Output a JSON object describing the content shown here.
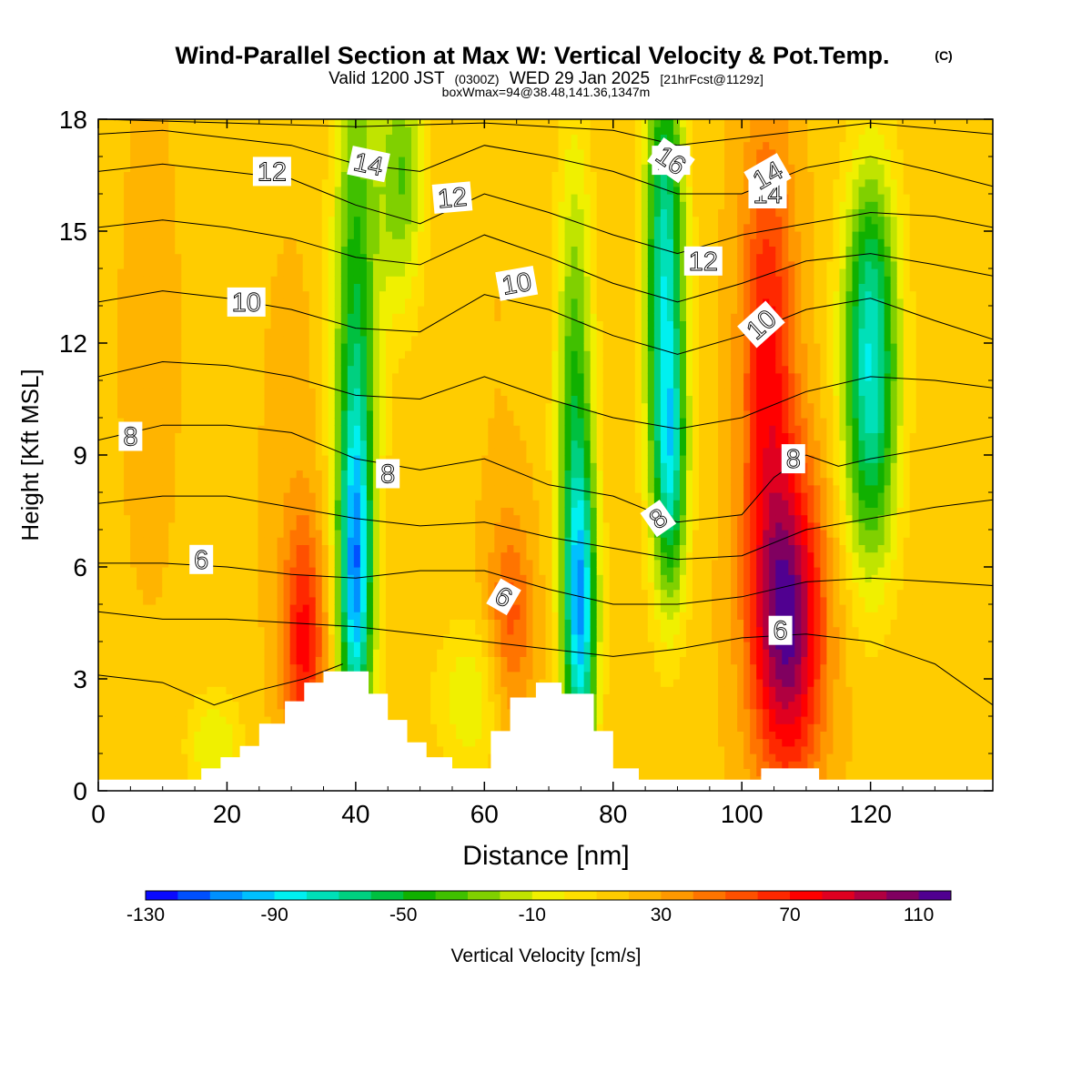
{
  "chart_data": {
    "type": "heatmap",
    "title": "Wind-Parallel Section at Max W: Vertical Velocity & Pot.Temp.",
    "title_mark": "(C)",
    "subtitle_parts": [
      "Valid 1200 JST",
      "(0300Z)",
      "WED 29 Jan 2025",
      "[21hrFcst@1129z]"
    ],
    "subtitle2": "boxWmax=94@38.48,141.36,1347m",
    "xlabel": "Distance [nm]",
    "ylabel": "Height [Kft MSL]",
    "xlim": [
      0,
      139
    ],
    "ylim": [
      0,
      18
    ],
    "xticks": [
      0,
      20,
      40,
      60,
      80,
      100,
      120
    ],
    "yticks": [
      0,
      3,
      6,
      9,
      12,
      15,
      18
    ],
    "colorbar": {
      "label": "Vertical Velocity [cm/s]",
      "min": -130,
      "max": 120,
      "step": 10,
      "tick_labels": [
        -130,
        -90,
        -50,
        -10,
        30,
        70,
        110
      ],
      "colors": [
        "#0a0aff",
        "#0050ff",
        "#0090ff",
        "#00c0ff",
        "#00f0f0",
        "#00e0b8",
        "#00d080",
        "#00c040",
        "#10b000",
        "#40c000",
        "#80d000",
        "#c0e400",
        "#f0f000",
        "#ffe000",
        "#ffcc00",
        "#ffb400",
        "#ff9800",
        "#ff7400",
        "#ff5000",
        "#ff2800",
        "#ff0000",
        "#e00020",
        "#b00040",
        "#800060",
        "#500090"
      ]
    },
    "velocity_features": [
      {
        "x": 40,
        "y": 5.5,
        "w": -72,
        "sx": 1.8,
        "sy": 3.2
      },
      {
        "x": 40,
        "y": 12.0,
        "w": -48,
        "sx": 2.5,
        "sy": 6.0
      },
      {
        "x": 47,
        "y": 16.5,
        "w": -30,
        "sx": 2.5,
        "sy": 2.5
      },
      {
        "x": 75,
        "y": 4.5,
        "w": -75,
        "sx": 1.8,
        "sy": 3.0
      },
      {
        "x": 74,
        "y": 10.0,
        "w": -40,
        "sx": 2.0,
        "sy": 5.0
      },
      {
        "x": 88,
        "y": 14.0,
        "w": -75,
        "sx": 2.2,
        "sy": 4.5
      },
      {
        "x": 89,
        "y": 8.5,
        "w": -45,
        "sx": 1.8,
        "sy": 2.5
      },
      {
        "x": 120,
        "y": 10.0,
        "w": -62,
        "sx": 3.0,
        "sy": 3.0
      },
      {
        "x": 120,
        "y": 14.0,
        "w": -30,
        "sx": 3.0,
        "sy": 2.5
      },
      {
        "x": 107,
        "y": 4.5,
        "w": 112,
        "sx": 4.0,
        "sy": 3.0
      },
      {
        "x": 104,
        "y": 12.0,
        "w": 72,
        "sx": 3.0,
        "sy": 4.0
      },
      {
        "x": 32,
        "y": 4.0,
        "w": 72,
        "sx": 2.3,
        "sy": 2.2
      },
      {
        "x": 64,
        "y": 4.5,
        "w": 55,
        "sx": 2.5,
        "sy": 2.0
      },
      {
        "x": 30,
        "y": 8.5,
        "w": 25,
        "sx": 3.0,
        "sy": 4.0
      },
      {
        "x": 8,
        "y": 12.0,
        "w": 22,
        "sx": 4.0,
        "sy": 6.0
      },
      {
        "x": 62,
        "y": 13.0,
        "w": 20,
        "sx": 3.0,
        "sy": 5.0
      },
      {
        "x": 18,
        "y": 1.2,
        "w": -10,
        "sx": 3.0,
        "sy": 1.0
      },
      {
        "x": 58,
        "y": 2.5,
        "w": -8,
        "sx": 4.0,
        "sy": 1.5
      }
    ],
    "theta_contours": [
      {
        "label": "6",
        "label_at": [
          16,
          6.2
        ],
        "points": [
          [
            0,
            6.1
          ],
          [
            10,
            6.1
          ],
          [
            20,
            6.0
          ],
          [
            30,
            5.8
          ],
          [
            40,
            5.7
          ],
          [
            50,
            5.9
          ],
          [
            60,
            5.9
          ],
          [
            70,
            5.4
          ],
          [
            80,
            5.0
          ],
          [
            90,
            5.0
          ],
          [
            100,
            5.2
          ],
          [
            110,
            5.6
          ],
          [
            120,
            5.7
          ],
          [
            130,
            5.6
          ],
          [
            139,
            5.5
          ]
        ]
      },
      {
        "label": "8",
        "label_at": [
          5,
          9.5
        ],
        "points": [
          [
            0,
            9.4
          ],
          [
            10,
            9.8
          ],
          [
            20,
            9.8
          ],
          [
            30,
            9.6
          ],
          [
            40,
            8.9
          ],
          [
            50,
            8.6
          ],
          [
            60,
            8.9
          ],
          [
            70,
            8.2
          ],
          [
            80,
            7.9
          ],
          [
            90,
            7.2
          ],
          [
            100,
            7.4
          ],
          [
            105,
            8.4
          ],
          [
            110,
            9.0
          ],
          [
            115,
            8.7
          ],
          [
            120,
            8.9
          ],
          [
            130,
            9.2
          ],
          [
            139,
            9.5
          ]
        ]
      },
      {
        "label": "10",
        "label_at": [
          23,
          13.1
        ],
        "points": [
          [
            0,
            13.1
          ],
          [
            10,
            13.4
          ],
          [
            20,
            13.2
          ],
          [
            30,
            12.9
          ],
          [
            40,
            12.4
          ],
          [
            50,
            12.3
          ],
          [
            60,
            13.3
          ],
          [
            70,
            12.9
          ],
          [
            80,
            12.2
          ],
          [
            90,
            11.7
          ],
          [
            100,
            12.2
          ],
          [
            110,
            12.9
          ],
          [
            120,
            13.2
          ],
          [
            130,
            12.6
          ],
          [
            139,
            12.1
          ]
        ]
      },
      {
        "label": "12",
        "label_at": [
          27,
          16.6
        ],
        "points": [
          [
            0,
            16.6
          ],
          [
            10,
            16.8
          ],
          [
            20,
            16.6
          ],
          [
            30,
            16.4
          ],
          [
            40,
            15.7
          ],
          [
            50,
            15.2
          ],
          [
            60,
            16.0
          ],
          [
            70,
            15.5
          ],
          [
            80,
            14.9
          ],
          [
            90,
            14.4
          ],
          [
            100,
            14.9
          ],
          [
            110,
            15.2
          ],
          [
            120,
            15.5
          ],
          [
            130,
            15.4
          ],
          [
            139,
            15.1
          ]
        ]
      },
      {
        "label": "14",
        "label_at": [
          104,
          16.0
        ],
        "points": [
          [
            0,
            17.6
          ],
          [
            10,
            17.7
          ],
          [
            20,
            17.5
          ],
          [
            30,
            17.3
          ],
          [
            40,
            16.8
          ],
          [
            50,
            16.6
          ],
          [
            60,
            17.3
          ],
          [
            70,
            17.0
          ],
          [
            80,
            16.6
          ],
          [
            90,
            16.0
          ],
          [
            100,
            16.0
          ],
          [
            110,
            16.7
          ],
          [
            120,
            17.0
          ],
          [
            130,
            16.6
          ],
          [
            139,
            16.2
          ]
        ]
      },
      {
        "label": "16",
        "label_at": [
          89,
          16.9
        ],
        "points": [
          [
            0,
            18.0
          ],
          [
            40,
            17.8
          ],
          [
            60,
            17.9
          ],
          [
            80,
            17.7
          ],
          [
            90,
            17.3
          ],
          [
            100,
            17.5
          ],
          [
            120,
            17.9
          ],
          [
            139,
            17.6
          ]
        ]
      },
      {
        "label": "",
        "label_at": [],
        "points": [
          [
            0,
            4.8
          ],
          [
            10,
            4.6
          ],
          [
            20,
            4.6
          ],
          [
            30,
            4.5
          ],
          [
            40,
            4.4
          ],
          [
            50,
            4.2
          ],
          [
            60,
            4.0
          ],
          [
            70,
            3.8
          ],
          [
            80,
            3.6
          ],
          [
            90,
            3.8
          ],
          [
            100,
            4.1
          ],
          [
            110,
            4.2
          ],
          [
            120,
            4.0
          ],
          [
            130,
            3.4
          ],
          [
            139,
            2.3
          ]
        ]
      },
      {
        "label": "",
        "label_at": [],
        "points": [
          [
            0,
            3.1
          ],
          [
            10,
            2.9
          ],
          [
            18,
            2.3
          ],
          [
            25,
            2.7
          ],
          [
            32,
            3.0
          ],
          [
            38,
            3.4
          ]
        ]
      },
      {
        "label": "",
        "label_at": [],
        "points": [
          [
            0,
            7.7
          ],
          [
            10,
            7.9
          ],
          [
            20,
            7.9
          ],
          [
            30,
            7.6
          ],
          [
            40,
            7.3
          ],
          [
            50,
            7.1
          ],
          [
            60,
            7.2
          ],
          [
            70,
            6.8
          ],
          [
            80,
            6.5
          ],
          [
            90,
            6.2
          ],
          [
            100,
            6.3
          ],
          [
            110,
            7.0
          ],
          [
            120,
            7.3
          ],
          [
            130,
            7.6
          ],
          [
            139,
            7.8
          ]
        ]
      },
      {
        "label": "",
        "label_at": [],
        "points": [
          [
            0,
            11.1
          ],
          [
            10,
            11.5
          ],
          [
            20,
            11.4
          ],
          [
            30,
            11.1
          ],
          [
            40,
            10.6
          ],
          [
            50,
            10.5
          ],
          [
            60,
            11.1
          ],
          [
            70,
            10.5
          ],
          [
            80,
            10.0
          ],
          [
            90,
            9.7
          ],
          [
            100,
            10.0
          ],
          [
            110,
            10.7
          ],
          [
            120,
            11.1
          ],
          [
            130,
            11.0
          ],
          [
            139,
            10.8
          ]
        ]
      },
      {
        "label": "",
        "label_at": [],
        "points": [
          [
            0,
            15.1
          ],
          [
            10,
            15.3
          ],
          [
            20,
            15.1
          ],
          [
            30,
            14.8
          ],
          [
            40,
            14.3
          ],
          [
            50,
            14.1
          ],
          [
            60,
            14.9
          ],
          [
            70,
            14.3
          ],
          [
            80,
            13.6
          ],
          [
            90,
            13.1
          ],
          [
            100,
            13.6
          ],
          [
            110,
            14.2
          ],
          [
            120,
            14.4
          ],
          [
            130,
            14.1
          ],
          [
            139,
            13.8
          ]
        ]
      }
    ],
    "contour_labels": [
      {
        "text": "6",
        "x": 63,
        "y": 5.2,
        "angle": 30
      },
      {
        "text": "6",
        "x": 106,
        "y": 4.3,
        "angle": 0
      },
      {
        "text": "8",
        "x": 45,
        "y": 8.5,
        "angle": 0
      },
      {
        "text": "8",
        "x": 87,
        "y": 7.3,
        "angle": -35
      },
      {
        "text": "8",
        "x": 108,
        "y": 8.9,
        "angle": 0
      },
      {
        "text": "10",
        "x": 65,
        "y": 13.6,
        "angle": -10
      },
      {
        "text": "10",
        "x": 103,
        "y": 12.5,
        "angle": -42
      },
      {
        "text": "12",
        "x": 55,
        "y": 15.9,
        "angle": -5
      },
      {
        "text": "12",
        "x": 94,
        "y": 14.2,
        "angle": 0
      },
      {
        "text": "14",
        "x": 42,
        "y": 16.8,
        "angle": 12
      },
      {
        "text": "14",
        "x": 104,
        "y": 16.5,
        "angle": -30
      },
      {
        "text": "16",
        "x": 89,
        "y": 16.9,
        "angle": 35
      }
    ],
    "terrain": [
      [
        0,
        0.3
      ],
      [
        16,
        0.3
      ],
      [
        16,
        0.6
      ],
      [
        19,
        0.6
      ],
      [
        19,
        0.9
      ],
      [
        22,
        0.9
      ],
      [
        22,
        1.2
      ],
      [
        25,
        1.2
      ],
      [
        25,
        1.8
      ],
      [
        29,
        1.8
      ],
      [
        29,
        2.4
      ],
      [
        32,
        2.4
      ],
      [
        32,
        2.9
      ],
      [
        35,
        2.9
      ],
      [
        35,
        3.2
      ],
      [
        42,
        3.2
      ],
      [
        42,
        2.6
      ],
      [
        45,
        2.6
      ],
      [
        45,
        1.9
      ],
      [
        48,
        1.9
      ],
      [
        48,
        1.3
      ],
      [
        51,
        1.3
      ],
      [
        51,
        0.9
      ],
      [
        55,
        0.9
      ],
      [
        55,
        0.6
      ],
      [
        61,
        0.6
      ],
      [
        61,
        1.6
      ],
      [
        64,
        1.6
      ],
      [
        64,
        2.5
      ],
      [
        68,
        2.5
      ],
      [
        68,
        2.9
      ],
      [
        72,
        2.9
      ],
      [
        72,
        2.6
      ],
      [
        77,
        2.6
      ],
      [
        77,
        1.6
      ],
      [
        80,
        1.6
      ],
      [
        80,
        0.6
      ],
      [
        84,
        0.6
      ],
      [
        84,
        0.3
      ],
      [
        103,
        0.3
      ],
      [
        103,
        0.6
      ],
      [
        112,
        0.6
      ],
      [
        112,
        0.3
      ],
      [
        139,
        0.3
      ]
    ]
  }
}
